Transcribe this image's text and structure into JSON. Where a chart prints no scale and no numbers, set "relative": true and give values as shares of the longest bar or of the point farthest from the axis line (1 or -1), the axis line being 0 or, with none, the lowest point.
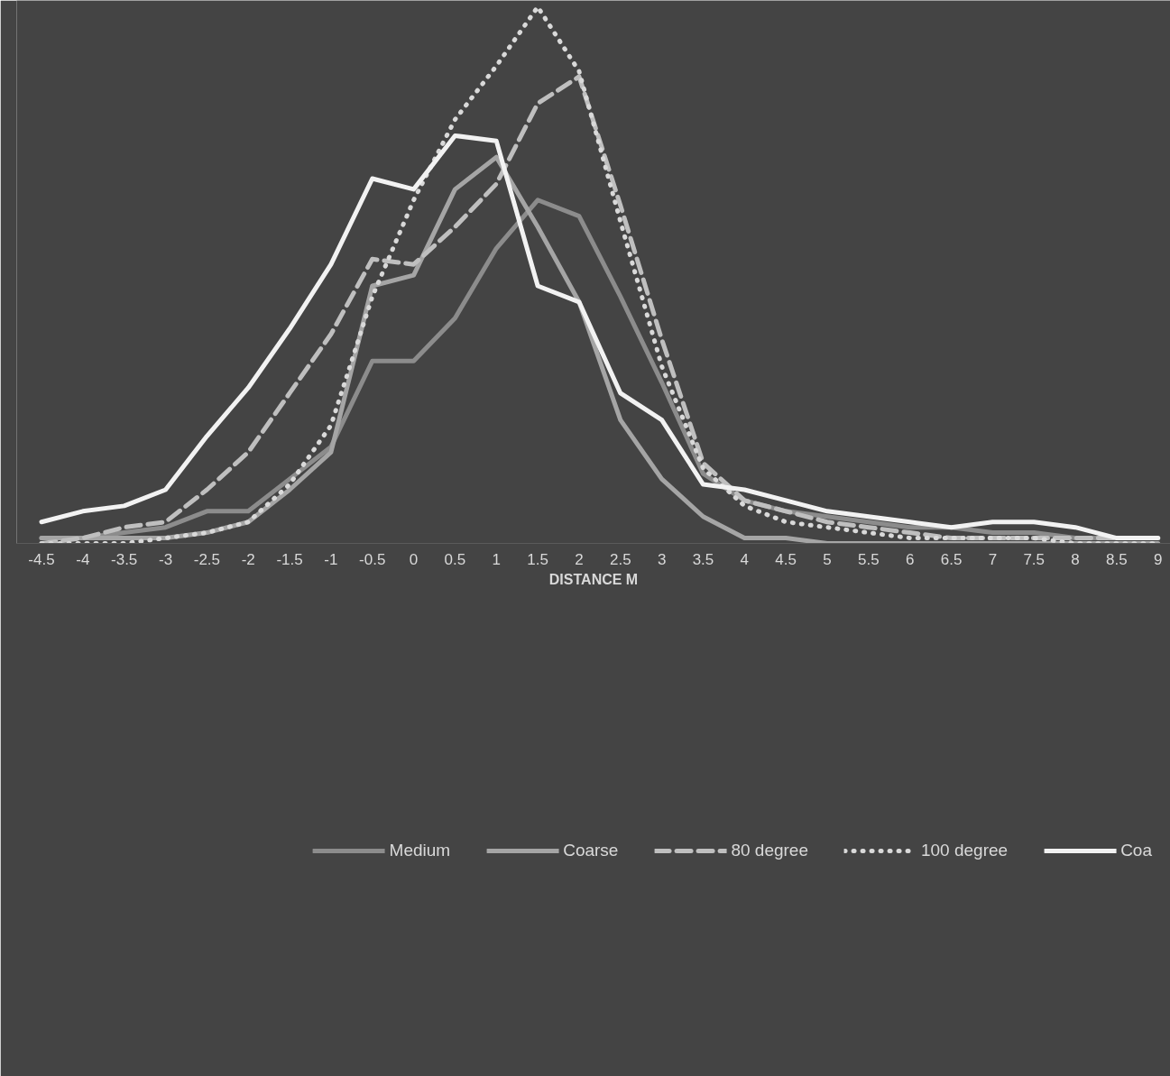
{
  "chart_data": {
    "type": "line",
    "relative": true,
    "xlabel": "DISTANCE M",
    "categories": [
      "-4.5",
      "-4",
      "-3.5",
      "-3",
      "-2.5",
      "-2",
      "-1.5",
      "-1",
      "-0.5",
      "0",
      "0.5",
      "1",
      "1.5",
      "2",
      "2.5",
      "3",
      "3.5",
      "4",
      "4.5",
      "5",
      "5.5",
      "6",
      "6.5",
      "7",
      "7.5",
      "8",
      "8.5",
      "9"
    ],
    "legend": "bottom",
    "marker": "none",
    "series": [
      {
        "name": "Medium",
        "color": "#8c8c8c",
        "line_style": "solid",
        "values": [
          0.01,
          0.01,
          0.02,
          0.03,
          0.06,
          0.06,
          0.12,
          0.18,
          0.34,
          0.34,
          0.42,
          0.55,
          0.64,
          0.61,
          0.46,
          0.3,
          0.13,
          0.08,
          0.06,
          0.05,
          0.04,
          0.03,
          0.03,
          0.02,
          0.02,
          0.01,
          0.01,
          0.01
        ]
      },
      {
        "name": "Coarse",
        "color": "#a5a5a5",
        "line_style": "solid",
        "values": [
          0.01,
          0.01,
          0.01,
          0.01,
          0.02,
          0.04,
          0.1,
          0.17,
          0.48,
          0.5,
          0.66,
          0.72,
          0.59,
          0.45,
          0.23,
          0.12,
          0.05,
          0.01,
          0.01,
          0,
          0,
          0,
          0,
          0,
          0,
          0,
          0,
          0
        ]
      },
      {
        "name": "80 degree",
        "color": "#bfbfbf",
        "line_style": "dashed",
        "values": [
          0,
          0.01,
          0.03,
          0.04,
          0.1,
          0.17,
          0.28,
          0.39,
          0.53,
          0.52,
          0.59,
          0.67,
          0.82,
          0.87,
          0.63,
          0.38,
          0.15,
          0.08,
          0.06,
          0.04,
          0.03,
          0.02,
          0.01,
          0.01,
          0.01,
          0.01,
          0.01,
          0.01
        ]
      },
      {
        "name": "100 degree",
        "color": "#d9d9d9",
        "line_style": "dotted",
        "values": [
          0,
          0,
          0,
          0.01,
          0.02,
          0.04,
          0.11,
          0.22,
          0.46,
          0.64,
          0.79,
          0.89,
          1.0,
          0.88,
          0.6,
          0.33,
          0.14,
          0.07,
          0.04,
          0.03,
          0.02,
          0.01,
          0.01,
          0.01,
          0.01,
          0,
          0,
          0
        ]
      },
      {
        "name": "Coa",
        "color": "#f2f2f2",
        "line_style": "solid",
        "values": [
          0.04,
          0.06,
          0.07,
          0.1,
          0.2,
          0.29,
          0.4,
          0.52,
          0.68,
          0.66,
          0.76,
          0.75,
          0.48,
          0.45,
          0.28,
          0.23,
          0.11,
          0.1,
          0.08,
          0.06,
          0.05,
          0.04,
          0.03,
          0.04,
          0.04,
          0.03,
          0.01,
          0.01
        ]
      }
    ]
  }
}
